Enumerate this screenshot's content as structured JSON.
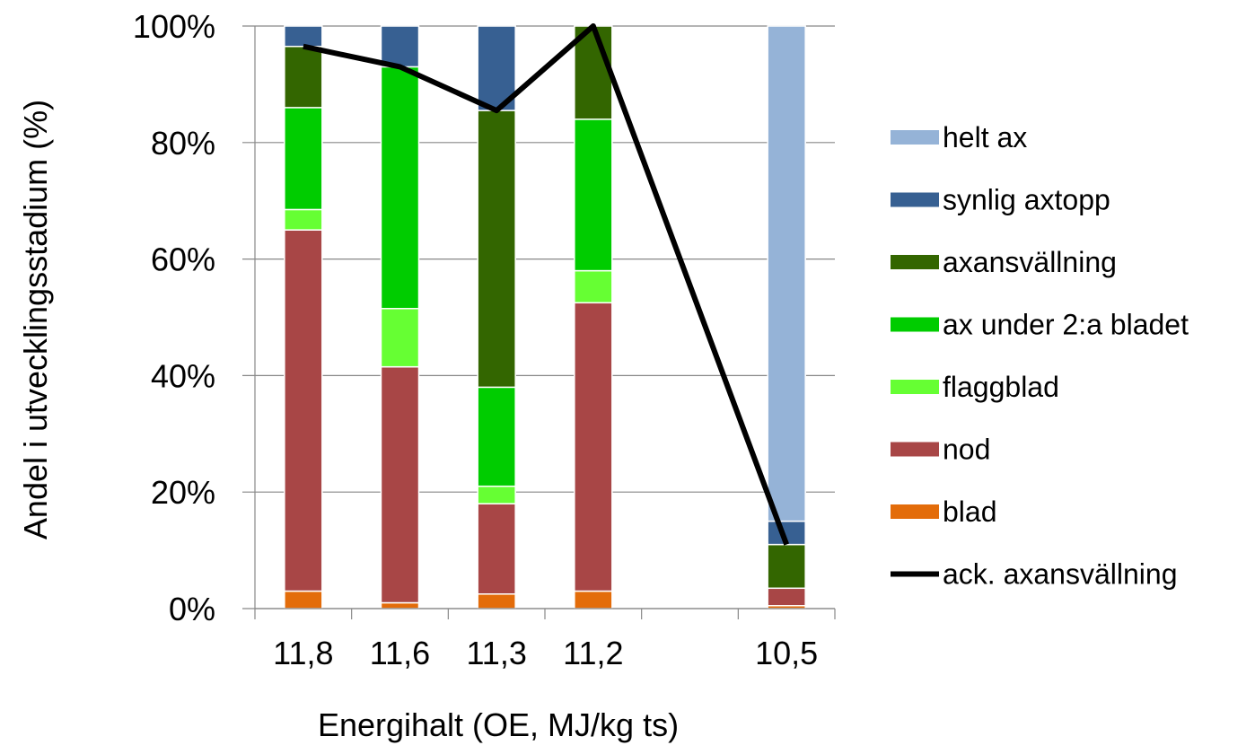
{
  "chart_data": {
    "type": "bar",
    "stacked": true,
    "xlabel": "Energihalt (OE, MJ/kg ts)",
    "ylabel": "Andel i utvecklingsstadium (%)",
    "ylim": [
      0,
      100
    ],
    "y_ticks": [
      "0%",
      "20%",
      "40%",
      "60%",
      "80%",
      "100%"
    ],
    "grid": true,
    "legend_position": "right",
    "categories": [
      "11,8",
      "11,6",
      "11,3",
      "11,2",
      "",
      "10,5"
    ],
    "series": [
      {
        "name": "blad",
        "color": "#E36C0A",
        "values": [
          3,
          1,
          2.5,
          3,
          0,
          0.5
        ]
      },
      {
        "name": "nod",
        "color": "#A84646",
        "values": [
          62,
          40.5,
          15.5,
          49.5,
          0,
          3
        ]
      },
      {
        "name": "flaggblad",
        "color": "#66FF33",
        "values": [
          3.5,
          10,
          3,
          5.5,
          0,
          0
        ]
      },
      {
        "name": "ax under 2:a bladet",
        "color": "#00CC00",
        "values": [
          17.5,
          41.5,
          17,
          26,
          0,
          0
        ]
      },
      {
        "name": "axansvällning",
        "color": "#336600",
        "values": [
          10.5,
          0,
          47.5,
          16,
          0,
          7.5
        ]
      },
      {
        "name": "synlig axtopp",
        "color": "#376092",
        "values": [
          3.5,
          7,
          14.5,
          0,
          0,
          4
        ]
      },
      {
        "name": "helt ax",
        "color": "#95B3D7",
        "values": [
          0,
          0,
          0,
          0,
          0,
          85
        ]
      }
    ],
    "line_series": {
      "name": "ack. axansvällning",
      "color": "#000000",
      "values": [
        96.5,
        93,
        85.5,
        100,
        null,
        11
      ]
    },
    "legend_order": [
      "helt ax",
      "synlig axtopp",
      "axansvällning",
      "ax under 2:a bladet",
      "flaggblad",
      "nod",
      "blad",
      "ack. axansvällning"
    ]
  }
}
